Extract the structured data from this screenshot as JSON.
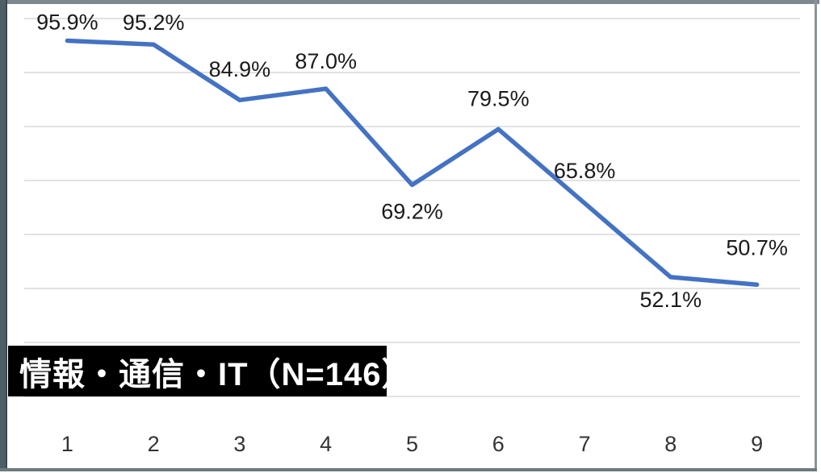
{
  "chart_data": {
    "type": "line",
    "title": "",
    "categories": [
      "1",
      "2",
      "3",
      "4",
      "5",
      "6",
      "7",
      "8",
      "9"
    ],
    "series": [
      {
        "name": "情報・通信・IT（N=146）",
        "values": [
          95.9,
          95.2,
          84.9,
          87.0,
          69.2,
          79.5,
          65.8,
          52.1,
          50.7
        ],
        "labels": [
          "95.9%",
          "95.2%",
          "84.9%",
          "87.0%",
          "69.2%",
          "79.5%",
          "65.8%",
          "52.1%",
          "50.7%"
        ]
      }
    ],
    "series_label": "情報・通信・IT（N=146）",
    "xlabel": "",
    "ylabel": "",
    "ylim": [
      30,
      100
    ],
    "grid_step": 10,
    "grid": true,
    "legend_position": "none",
    "y_axis_labels_visible": false,
    "line_color": "#4472C4",
    "gridline_color": "#D9D9D9",
    "data_label_color": "#1A1A1A",
    "axis_label_color": "#333333",
    "series_label_bg": "#000000",
    "series_label_fg": "#FFFFFF",
    "label_positions": [
      "above",
      "above",
      "above",
      "above",
      "below",
      "above",
      "above",
      "below",
      "above"
    ],
    "label_dy": [
      -14,
      -18,
      -29,
      -25,
      42,
      -29,
      -31,
      37,
      -37
    ]
  }
}
